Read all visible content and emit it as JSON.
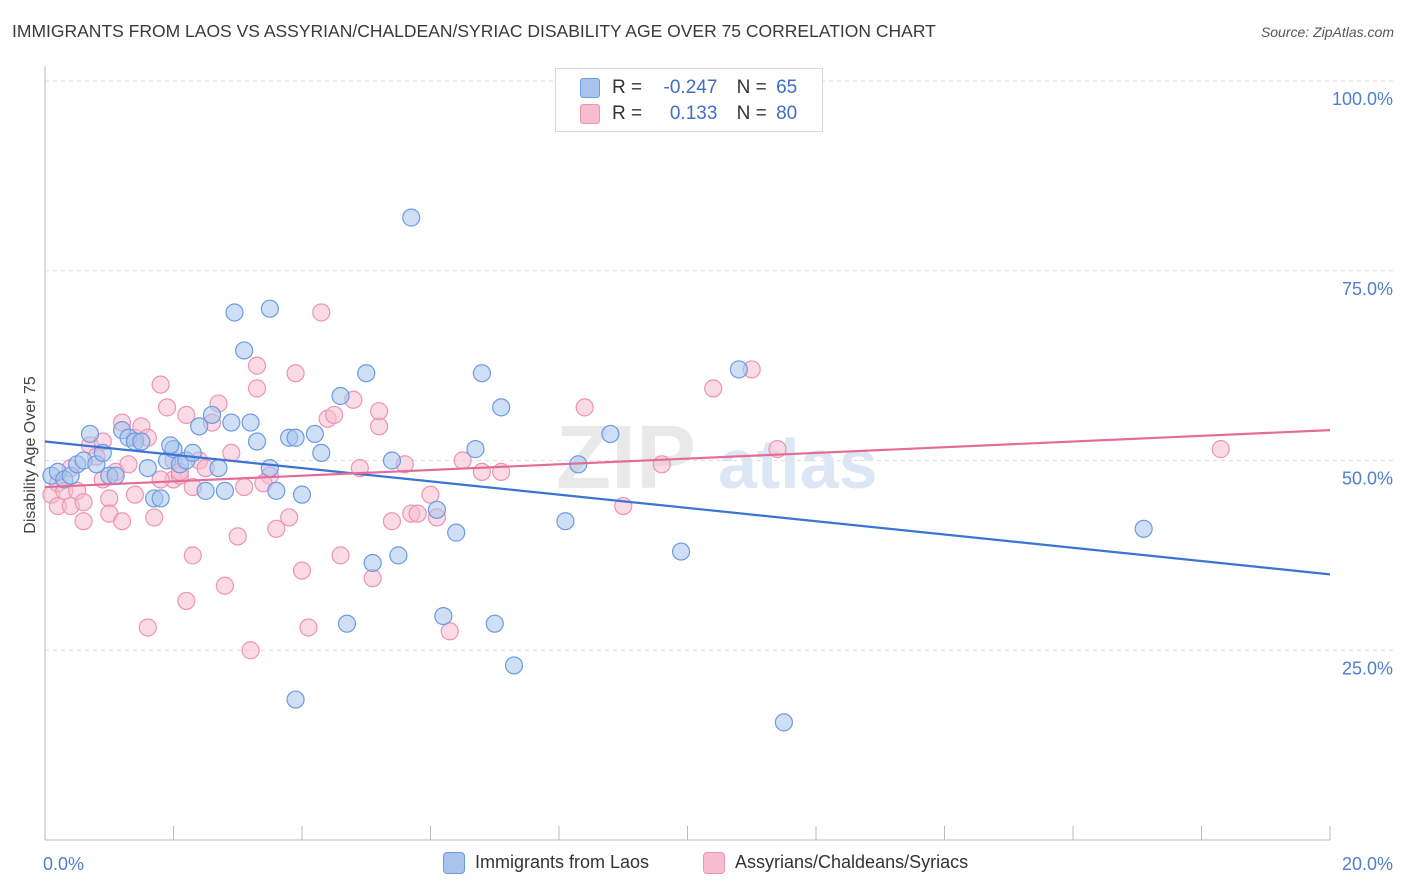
{
  "title": "IMMIGRANTS FROM LAOS VS ASSYRIAN/CHALDEAN/SYRIAC DISABILITY AGE OVER 75 CORRELATION CHART",
  "source": "Source: ZipAtlas.com",
  "watermark": {
    "zip": "ZIP",
    "atlas": "atlas"
  },
  "legend": {
    "rows": [
      {
        "r_label": "R =",
        "r_value": "-0.247",
        "n_label": "N =",
        "n_value": "65"
      },
      {
        "r_label": "R =",
        "r_value": "0.133",
        "n_label": "N =",
        "n_value": "80"
      }
    ]
  },
  "bottom_legend": [
    "Immigrants from Laos",
    "Assyrians/Chaldeans/Syriacs"
  ],
  "colors": {
    "blue_fill": "#a8c4ec",
    "blue_stroke": "#6c9be0",
    "blue_line": "#3b74d4",
    "pink_fill": "#f6bcd0",
    "pink_stroke": "#ee93b3",
    "pink_line": "#e46c97",
    "grid": "#dddddd",
    "tick_label": "#4f7fc9"
  },
  "chart_data": {
    "type": "scatter",
    "title": "IMMIGRANTS FROM LAOS VS ASSYRIAN/CHALDEAN/SYRIAC DISABILITY AGE OVER 75 CORRELATION CHART",
    "xlabel": "",
    "ylabel": "Disability Age Over 75",
    "xlim": [
      0,
      20
    ],
    "ylim": [
      0,
      100
    ],
    "x_tick_labels": [
      "0.0%",
      "20.0%"
    ],
    "y_tick_labels": [
      "100.0%",
      "75.0%",
      "50.0%",
      "25.0%"
    ],
    "y_tick_values": [
      100,
      75,
      50,
      25
    ],
    "series": [
      {
        "name": "Immigrants from Laos",
        "r": -0.247,
        "n": 65,
        "trend": [
          [
            0,
            52.5
          ],
          [
            20,
            35.0
          ]
        ],
        "points": [
          [
            0.1,
            48
          ],
          [
            0.2,
            48.5
          ],
          [
            0.3,
            47.5
          ],
          [
            0.4,
            48
          ],
          [
            0.5,
            49.5
          ],
          [
            0.6,
            50
          ],
          [
            0.7,
            53.5
          ],
          [
            0.8,
            49.5
          ],
          [
            0.9,
            51
          ],
          [
            1.0,
            48
          ],
          [
            1.1,
            48
          ],
          [
            1.2,
            54
          ],
          [
            1.3,
            53
          ],
          [
            1.4,
            52.5
          ],
          [
            1.5,
            52.5
          ],
          [
            1.6,
            49
          ],
          [
            1.7,
            45
          ],
          [
            1.8,
            45
          ],
          [
            1.9,
            50
          ],
          [
            2.0,
            51.5
          ],
          [
            2.1,
            49.5
          ],
          [
            2.2,
            50
          ],
          [
            2.3,
            51
          ],
          [
            2.4,
            54.5
          ],
          [
            2.5,
            46
          ],
          [
            2.6,
            56
          ],
          [
            2.7,
            49
          ],
          [
            2.8,
            46
          ],
          [
            2.9,
            55
          ],
          [
            2.95,
            69.5
          ],
          [
            3.1,
            64.5
          ],
          [
            3.2,
            55
          ],
          [
            3.3,
            52.5
          ],
          [
            3.5,
            70
          ],
          [
            3.5,
            49
          ],
          [
            3.6,
            46
          ],
          [
            3.8,
            53
          ],
          [
            3.9,
            53
          ],
          [
            4.0,
            45.5
          ],
          [
            4.2,
            53.5
          ],
          [
            4.3,
            51
          ],
          [
            4.6,
            58.5
          ],
          [
            4.7,
            28.5
          ],
          [
            5.0,
            61.5
          ],
          [
            5.1,
            36.5
          ],
          [
            5.4,
            50
          ],
          [
            5.5,
            37.5
          ],
          [
            5.7,
            82
          ],
          [
            6.1,
            43.5
          ],
          [
            6.2,
            29.5
          ],
          [
            6.4,
            40.5
          ],
          [
            6.7,
            51.5
          ],
          [
            6.8,
            61.5
          ],
          [
            7.0,
            28.5
          ],
          [
            7.1,
            57
          ],
          [
            7.3,
            23
          ],
          [
            8.1,
            42
          ],
          [
            8.3,
            49.5
          ],
          [
            8.8,
            53.5
          ],
          [
            9.9,
            38
          ],
          [
            10.8,
            62
          ],
          [
            11.5,
            15.5
          ],
          [
            17.1,
            41
          ],
          [
            3.9,
            18.5
          ],
          [
            1.95,
            52
          ]
        ]
      },
      {
        "name": "Assyrians/Chaldeans/Syriacs",
        "r": 0.133,
        "n": 80,
        "trend": [
          [
            0,
            46.5
          ],
          [
            20,
            54.0
          ]
        ],
        "points": [
          [
            0.1,
            45.5
          ],
          [
            0.2,
            47
          ],
          [
            0.2,
            44
          ],
          [
            0.3,
            46
          ],
          [
            0.4,
            44
          ],
          [
            0.5,
            46
          ],
          [
            0.6,
            44.5
          ],
          [
            0.6,
            42
          ],
          [
            0.7,
            52
          ],
          [
            0.8,
            50.5
          ],
          [
            0.9,
            47.5
          ],
          [
            1.0,
            45
          ],
          [
            1.0,
            43
          ],
          [
            1.1,
            48.5
          ],
          [
            1.2,
            55
          ],
          [
            1.2,
            42
          ],
          [
            1.3,
            49.5
          ],
          [
            1.4,
            53
          ],
          [
            1.5,
            54.5
          ],
          [
            1.6,
            53
          ],
          [
            1.6,
            28
          ],
          [
            1.7,
            42.5
          ],
          [
            1.8,
            60
          ],
          [
            1.9,
            57
          ],
          [
            2.0,
            47.5
          ],
          [
            2.0,
            50
          ],
          [
            2.1,
            48
          ],
          [
            2.2,
            31.5
          ],
          [
            2.3,
            46.5
          ],
          [
            2.3,
            37.5
          ],
          [
            2.4,
            50
          ],
          [
            2.5,
            49
          ],
          [
            2.6,
            55
          ],
          [
            2.7,
            57.5
          ],
          [
            2.8,
            33.5
          ],
          [
            2.9,
            51
          ],
          [
            3.0,
            40
          ],
          [
            3.1,
            46.5
          ],
          [
            3.2,
            25
          ],
          [
            3.3,
            59.5
          ],
          [
            3.3,
            62.5
          ],
          [
            3.5,
            48
          ],
          [
            3.6,
            41
          ],
          [
            3.8,
            42.5
          ],
          [
            3.9,
            61.5
          ],
          [
            4.0,
            35.5
          ],
          [
            4.1,
            28
          ],
          [
            4.3,
            69.5
          ],
          [
            4.4,
            55.5
          ],
          [
            4.5,
            56
          ],
          [
            4.6,
            37.5
          ],
          [
            4.8,
            58
          ],
          [
            4.9,
            49
          ],
          [
            5.1,
            34.5
          ],
          [
            5.2,
            54.5
          ],
          [
            5.2,
            56.5
          ],
          [
            5.4,
            42
          ],
          [
            5.6,
            49.5
          ],
          [
            5.7,
            43
          ],
          [
            5.8,
            43
          ],
          [
            6.0,
            45.5
          ],
          [
            6.1,
            42.5
          ],
          [
            6.3,
            27.5
          ],
          [
            6.5,
            50
          ],
          [
            6.8,
            48.5
          ],
          [
            7.1,
            48.5
          ],
          [
            8.4,
            57
          ],
          [
            9.0,
            44
          ],
          [
            9.6,
            49.5
          ],
          [
            10.4,
            59.5
          ],
          [
            11.0,
            62
          ],
          [
            11.4,
            51.5
          ],
          [
            18.3,
            51.5
          ],
          [
            2.1,
            48.5
          ],
          [
            0.4,
            49
          ],
          [
            0.9,
            52.5
          ],
          [
            1.4,
            45.5
          ],
          [
            3.4,
            47
          ],
          [
            2.2,
            56
          ],
          [
            1.8,
            47.5
          ]
        ]
      }
    ]
  }
}
